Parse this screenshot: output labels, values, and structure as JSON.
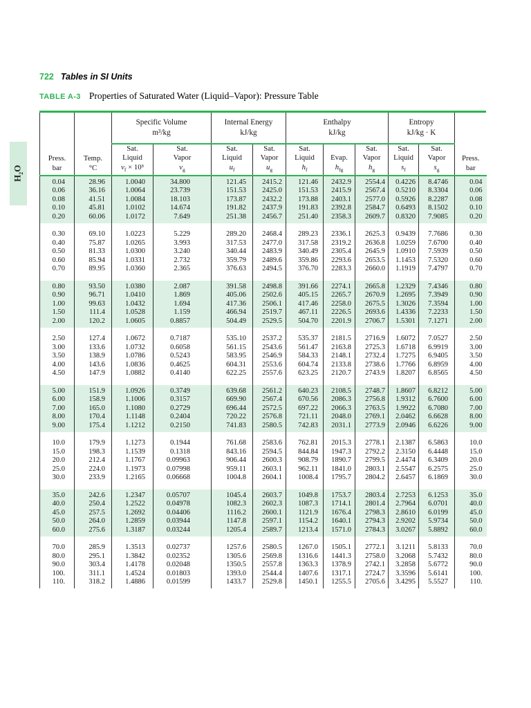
{
  "page": {
    "number": "722",
    "section": "Tables in SI Units"
  },
  "side_tab": {
    "pre": "H",
    "sub": "2",
    "post": "O"
  },
  "colors": {
    "accent_green": "#2eb353",
    "row_shade": "#dcf1e3",
    "tab_shade": "#d3ecdc"
  },
  "table": {
    "label": "TABLE A-3",
    "title": "Properties of Saturated Water (Liquid–Vapor): Pressure Table",
    "groups": [
      {
        "title": "Specific Volume",
        "units": "m³/kg"
      },
      {
        "title": "Internal Energy",
        "units": "kJ/kg"
      },
      {
        "title": "Enthalpy",
        "units": "kJ/kg"
      },
      {
        "title": "Entropy",
        "units": "kJ/kg · K"
      }
    ],
    "columns": [
      {
        "l1": "Press.",
        "l2": "bar"
      },
      {
        "l1": "Temp.",
        "l2": "°C"
      },
      {
        "l1": "Sat.",
        "l2": "Liquid",
        "sym": "v",
        "sub": "f",
        "suf": " × 10³"
      },
      {
        "l1": "Sat.",
        "l2": "Vapor",
        "sym": "v",
        "sub": "g"
      },
      {
        "l1": "Sat.",
        "l2": "Liquid",
        "sym": "u",
        "sub": "f"
      },
      {
        "l1": "Sat.",
        "l2": "Vapor",
        "sym": "u",
        "sub": "g"
      },
      {
        "l1": "Sat.",
        "l2": "Liquid",
        "sym": "h",
        "sub": "f"
      },
      {
        "l1": "Evap.",
        "sym": "h",
        "sub": "fg"
      },
      {
        "l1": "Sat.",
        "l2": "Vapor",
        "sym": "h",
        "sub": "g"
      },
      {
        "l1": "Sat.",
        "l2": "Liquid",
        "sym": "s",
        "sub": "f"
      },
      {
        "l1": "Sat.",
        "l2": "Vapor",
        "sym": "s",
        "sub": "g"
      },
      {
        "l1": "Press.",
        "l2": "bar"
      }
    ],
    "blocks": [
      {
        "shaded": true,
        "rows": [
          [
            "0.04",
            "28.96",
            "1.0040",
            "34.800",
            "121.45",
            "2415.2",
            "121.46",
            "2432.9",
            "2554.4",
            "0.4226",
            "8.4746",
            "0.04"
          ],
          [
            "0.06",
            "36.16",
            "1.0064",
            "23.739",
            "151.53",
            "2425.0",
            "151.53",
            "2415.9",
            "2567.4",
            "0.5210",
            "8.3304",
            "0.06"
          ],
          [
            "0.08",
            "41.51",
            "1.0084",
            "18.103",
            "173.87",
            "2432.2",
            "173.88",
            "2403.1",
            "2577.0",
            "0.5926",
            "8.2287",
            "0.08"
          ],
          [
            "0.10",
            "45.81",
            "1.0102",
            "14.674",
            "191.82",
            "2437.9",
            "191.83",
            "2392.8",
            "2584.7",
            "0.6493",
            "8.1502",
            "0.10"
          ],
          [
            "0.20",
            "60.06",
            "1.0172",
            "7.649",
            "251.38",
            "2456.7",
            "251.40",
            "2358.3",
            "2609.7",
            "0.8320",
            "7.9085",
            "0.20"
          ]
        ]
      },
      {
        "shaded": false,
        "rows": [
          [
            "0.30",
            "69.10",
            "1.0223",
            "5.229",
            "289.20",
            "2468.4",
            "289.23",
            "2336.1",
            "2625.3",
            "0.9439",
            "7.7686",
            "0.30"
          ],
          [
            "0.40",
            "75.87",
            "1.0265",
            "3.993",
            "317.53",
            "2477.0",
            "317.58",
            "2319.2",
            "2636.8",
            "1.0259",
            "7.6700",
            "0.40"
          ],
          [
            "0.50",
            "81.33",
            "1.0300",
            "3.240",
            "340.44",
            "2483.9",
            "340.49",
            "2305.4",
            "2645.9",
            "1.0910",
            "7.5939",
            "0.50"
          ],
          [
            "0.60",
            "85.94",
            "1.0331",
            "2.732",
            "359.79",
            "2489.6",
            "359.86",
            "2293.6",
            "2653.5",
            "1.1453",
            "7.5320",
            "0.60"
          ],
          [
            "0.70",
            "89.95",
            "1.0360",
            "2.365",
            "376.63",
            "2494.5",
            "376.70",
            "2283.3",
            "2660.0",
            "1.1919",
            "7.4797",
            "0.70"
          ]
        ]
      },
      {
        "shaded": true,
        "rows": [
          [
            "0.80",
            "93.50",
            "1.0380",
            "2.087",
            "391.58",
            "2498.8",
            "391.66",
            "2274.1",
            "2665.8",
            "1.2329",
            "7.4346",
            "0.80"
          ],
          [
            "0.90",
            "96.71",
            "1.0410",
            "1.869",
            "405.06",
            "2502.6",
            "405.15",
            "2265.7",
            "2670.9",
            "1.2695",
            "7.3949",
            "0.90"
          ],
          [
            "1.00",
            "99.63",
            "1.0432",
            "1.694",
            "417.36",
            "2506.1",
            "417.46",
            "2258.0",
            "2675.5",
            "1.3026",
            "7.3594",
            "1.00"
          ],
          [
            "1.50",
            "111.4",
            "1.0528",
            "1.159",
            "466.94",
            "2519.7",
            "467.11",
            "2226.5",
            "2693.6",
            "1.4336",
            "7.2233",
            "1.50"
          ],
          [
            "2.00",
            "120.2",
            "1.0605",
            "0.8857",
            "504.49",
            "2529.5",
            "504.70",
            "2201.9",
            "2706.7",
            "1.5301",
            "7.1271",
            "2.00"
          ]
        ]
      },
      {
        "shaded": false,
        "rows": [
          [
            "2.50",
            "127.4",
            "1.0672",
            "0.7187",
            "535.10",
            "2537.2",
            "535.37",
            "2181.5",
            "2716.9",
            "1.6072",
            "7.0527",
            "2.50"
          ],
          [
            "3.00",
            "133.6",
            "1.0732",
            "0.6058",
            "561.15",
            "2543.6",
            "561.47",
            "2163.8",
            "2725.3",
            "1.6718",
            "6.9919",
            "3.00"
          ],
          [
            "3.50",
            "138.9",
            "1.0786",
            "0.5243",
            "583.95",
            "2546.9",
            "584.33",
            "2148.1",
            "2732.4",
            "1.7275",
            "6.9405",
            "3.50"
          ],
          [
            "4.00",
            "143.6",
            "1.0836",
            "0.4625",
            "604.31",
            "2553.6",
            "604.74",
            "2133.8",
            "2738.6",
            "1.7766",
            "6.8959",
            "4.00"
          ],
          [
            "4.50",
            "147.9",
            "1.0882",
            "0.4140",
            "622.25",
            "2557.6",
            "623.25",
            "2120.7",
            "2743.9",
            "1.8207",
            "6.8565",
            "4.50"
          ]
        ]
      },
      {
        "shaded": true,
        "rows": [
          [
            "5.00",
            "151.9",
            "1.0926",
            "0.3749",
            "639.68",
            "2561.2",
            "640.23",
            "2108.5",
            "2748.7",
            "1.8607",
            "6.8212",
            "5.00"
          ],
          [
            "6.00",
            "158.9",
            "1.1006",
            "0.3157",
            "669.90",
            "2567.4",
            "670.56",
            "2086.3",
            "2756.8",
            "1.9312",
            "6.7600",
            "6.00"
          ],
          [
            "7.00",
            "165.0",
            "1.1080",
            "0.2729",
            "696.44",
            "2572.5",
            "697.22",
            "2066.3",
            "2763.5",
            "1.9922",
            "6.7080",
            "7.00"
          ],
          [
            "8.00",
            "170.4",
            "1.1148",
            "0.2404",
            "720.22",
            "2576.8",
            "721.11",
            "2048.0",
            "2769.1",
            "2.0462",
            "6.6628",
            "8.00"
          ],
          [
            "9.00",
            "175.4",
            "1.1212",
            "0.2150",
            "741.83",
            "2580.5",
            "742.83",
            "2031.1",
            "2773.9",
            "2.0946",
            "6.6226",
            "9.00"
          ]
        ]
      },
      {
        "shaded": false,
        "rows": [
          [
            "10.0",
            "179.9",
            "1.1273",
            "0.1944",
            "761.68",
            "2583.6",
            "762.81",
            "2015.3",
            "2778.1",
            "2.1387",
            "6.5863",
            "10.0"
          ],
          [
            "15.0",
            "198.3",
            "1.1539",
            "0.1318",
            "843.16",
            "2594.5",
            "844.84",
            "1947.3",
            "2792.2",
            "2.3150",
            "6.4448",
            "15.0"
          ],
          [
            "20.0",
            "212.4",
            "1.1767",
            "0.09963",
            "906.44",
            "2600.3",
            "908.79",
            "1890.7",
            "2799.5",
            "2.4474",
            "6.3409",
            "20.0"
          ],
          [
            "25.0",
            "224.0",
            "1.1973",
            "0.07998",
            "959.11",
            "2603.1",
            "962.11",
            "1841.0",
            "2803.1",
            "2.5547",
            "6.2575",
            "25.0"
          ],
          [
            "30.0",
            "233.9",
            "1.2165",
            "0.06668",
            "1004.8",
            "2604.1",
            "1008.4",
            "1795.7",
            "2804.2",
            "2.6457",
            "6.1869",
            "30.0"
          ]
        ]
      },
      {
        "shaded": true,
        "rows": [
          [
            "35.0",
            "242.6",
            "1.2347",
            "0.05707",
            "1045.4",
            "2603.7",
            "1049.8",
            "1753.7",
            "2803.4",
            "2.7253",
            "6.1253",
            "35.0"
          ],
          [
            "40.0",
            "250.4",
            "1.2522",
            "0.04978",
            "1082.3",
            "2602.3",
            "1087.3",
            "1714.1",
            "2801.4",
            "2.7964",
            "6.0701",
            "40.0"
          ],
          [
            "45.0",
            "257.5",
            "1.2692",
            "0.04406",
            "1116.2",
            "2600.1",
            "1121.9",
            "1676.4",
            "2798.3",
            "2.8610",
            "6.0199",
            "45.0"
          ],
          [
            "50.0",
            "264.0",
            "1.2859",
            "0.03944",
            "1147.8",
            "2597.1",
            "1154.2",
            "1640.1",
            "2794.3",
            "2.9202",
            "5.9734",
            "50.0"
          ],
          [
            "60.0",
            "275.6",
            "1.3187",
            "0.03244",
            "1205.4",
            "2589.7",
            "1213.4",
            "1571.0",
            "2784.3",
            "3.0267",
            "5.8892",
            "60.0"
          ]
        ]
      },
      {
        "shaded": false,
        "rows": [
          [
            "70.0",
            "285.9",
            "1.3513",
            "0.02737",
            "1257.6",
            "2580.5",
            "1267.0",
            "1505.1",
            "2772.1",
            "3.1211",
            "5.8133",
            "70.0"
          ],
          [
            "80.0",
            "295.1",
            "1.3842",
            "0.02352",
            "1305.6",
            "2569.8",
            "1316.6",
            "1441.3",
            "2758.0",
            "3.2068",
            "5.7432",
            "80.0"
          ],
          [
            "90.0",
            "303.4",
            "1.4178",
            "0.02048",
            "1350.5",
            "2557.8",
            "1363.3",
            "1378.9",
            "2742.1",
            "3.2858",
            "5.6772",
            "90.0"
          ],
          [
            "100.",
            "311.1",
            "1.4524",
            "0.01803",
            "1393.0",
            "2544.4",
            "1407.6",
            "1317.1",
            "2724.7",
            "3.3596",
            "5.6141",
            "100."
          ],
          [
            "110.",
            "318.2",
            "1.4886",
            "0.01599",
            "1433.7",
            "2529.8",
            "1450.1",
            "1255.5",
            "2705.6",
            "3.4295",
            "5.5527",
            "110."
          ]
        ]
      }
    ]
  }
}
